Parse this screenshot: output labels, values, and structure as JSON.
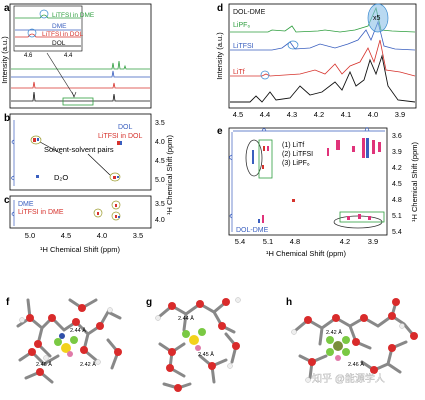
{
  "panels": {
    "a": {
      "letter": "a",
      "ylabel": "Intensity (a.u.)",
      "inset": {
        "series": [
          {
            "name": "LiTFSI in DME",
            "color": "#2e9e3e"
          },
          {
            "name": "DME",
            "color": "#3a5fbf"
          },
          {
            "name": "LiTFSI in DOL",
            "color": "#d6332d"
          },
          {
            "name": "DOL",
            "color": "#111111"
          }
        ],
        "xticks": [
          "4.6",
          "4.4"
        ]
      }
    },
    "b": {
      "letter": "b",
      "legend": [
        "DOL",
        "LiTFSI in DOL"
      ],
      "annotation": "Solvent-solvent pairs",
      "d2o": "D₂O",
      "yticks": [
        "3.5",
        "4.0",
        "4.5",
        "5.0"
      ]
    },
    "c": {
      "letter": "c",
      "legend": [
        "DME",
        "LiTFSI in DME"
      ],
      "yticks": [
        "3.5",
        "4.0"
      ],
      "xticks": [
        "5.0",
        "4.5",
        "4.0",
        "3.5"
      ],
      "xlabel": "¹H Chemical Shift (ppm)"
    },
    "bc_ylabel": "¹H Chemical Shift (ppm)",
    "d": {
      "letter": "d",
      "ylabel": "Intensity (a.u.)",
      "series": [
        {
          "name": "DOL-DME",
          "color": "#111111"
        },
        {
          "name": "LiPF₆",
          "color": "#2e9e3e"
        },
        {
          "name": "LiTFSI",
          "color": "#3a5fbf"
        },
        {
          "name": "LiTf",
          "color": "#d6332d"
        }
      ],
      "magnify": "x5",
      "xticks": [
        "4.5",
        "4.4",
        "4.3",
        "4.2",
        "4.1",
        "4.0",
        "3.9"
      ]
    },
    "e": {
      "letter": "e",
      "legend": [
        "(1) LiTf",
        "(2) LiTFSI",
        "(3) LiPF₆"
      ],
      "sample": "DOL-DME",
      "xticks": [
        "5.4",
        "5.1",
        "4.8",
        "4.2",
        "3.9"
      ],
      "yticks": [
        "3.6",
        "3.9",
        "4.2",
        "4.5",
        "4.8",
        "5.1",
        "5.4"
      ],
      "xlabel": "¹H Chemical Shift (ppm)",
      "ylabel": "¹H Chemical Shift (ppm)"
    },
    "f": {
      "letter": "f",
      "distances": [
        "2.44 Å",
        "2.46 Å",
        "2.42 Å"
      ]
    },
    "g": {
      "letter": "g",
      "distances": [
        "2.44 Å",
        "2.45 Å"
      ]
    },
    "h": {
      "letter": "h",
      "distances": [
        "2.42 Å",
        "2.46 Å"
      ]
    }
  },
  "watermark": "知乎 @能源学人"
}
